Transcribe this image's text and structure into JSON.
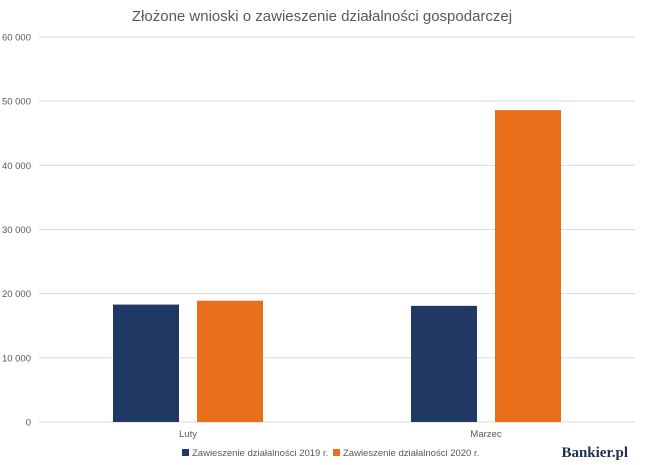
{
  "colors": {
    "series_2019": "#203864",
    "series_2020": "#ea6f1a",
    "grid": "#d9d9d9",
    "text": "#595959",
    "brand": "#1f2f4f"
  },
  "brand": {
    "name": "Bankier.pl"
  },
  "chart_data": {
    "type": "bar",
    "title": "Złożone wnioski o zawieszenie działalności gospodarczej",
    "xlabel": "",
    "ylabel": "",
    "categories": [
      "Luty",
      "Marzec"
    ],
    "series": [
      {
        "name": "Zawieszenie działalności 2019 r.",
        "color": "#203864",
        "values": [
          18300,
          18100
        ]
      },
      {
        "name": "Zawieszenie działalności 2020 r.",
        "color": "#ea6f1a",
        "values": [
          18900,
          48600
        ]
      }
    ],
    "ylim": [
      0,
      60000
    ],
    "yticks": [
      0,
      10000,
      20000,
      30000,
      40000,
      50000,
      60000
    ],
    "ytick_labels": [
      "0",
      "10 000",
      "20 000",
      "30 000",
      "40 000",
      "50 000",
      "60 000"
    ],
    "grid": true,
    "legend": "bottom"
  }
}
